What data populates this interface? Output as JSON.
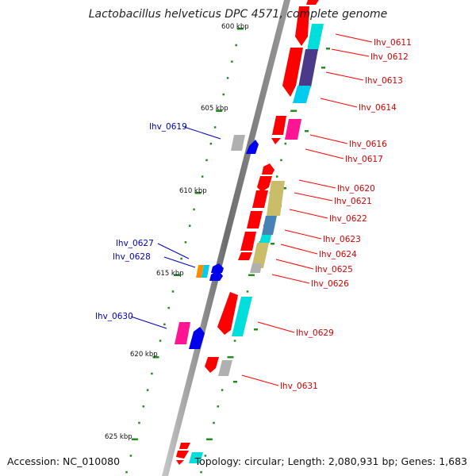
{
  "title": "Lactobacillus helveticus DPC 4571, complete genome",
  "footer": {
    "accession": "Accession: NC_010080",
    "topology": "Topology: circular; Length: 2,080,931 bp; Genes: 1,683"
  },
  "ticks": [
    {
      "label": "600 kbp"
    },
    {
      "label": "605 kbp"
    },
    {
      "label": "610 kbp"
    },
    {
      "label": "615 kbp"
    },
    {
      "label": "620 kbp"
    },
    {
      "label": "625 kbp"
    }
  ],
  "labels_right": [
    "lhv_0611",
    "lhv_0612",
    "lhv_0613",
    "lhv_0614",
    "lhv_0616",
    "lhv_0617",
    "lhv_0620",
    "lhv_0621",
    "lhv_0622",
    "lhv_0623",
    "lhv_0624",
    "lhv_0625",
    "lhv_0626",
    "lhv_0629",
    "lhv_0631"
  ],
  "labels_left": [
    "lhv_0619",
    "lhv_0627",
    "lhv_0628",
    "lhv_0630"
  ],
  "colors": {
    "red": "#ff0000",
    "blue": "#0000ee",
    "cyan": "#00dddd",
    "navy": "#4b3a8a",
    "olive": "#c9bd6a",
    "steel": "#4682b4",
    "magenta": "#ff1493",
    "gray": "#b0b0b0",
    "orange": "#ff8c00",
    "tick_green": "#228b22",
    "label_red": "#d40000",
    "label_blue": "#0000bb"
  }
}
